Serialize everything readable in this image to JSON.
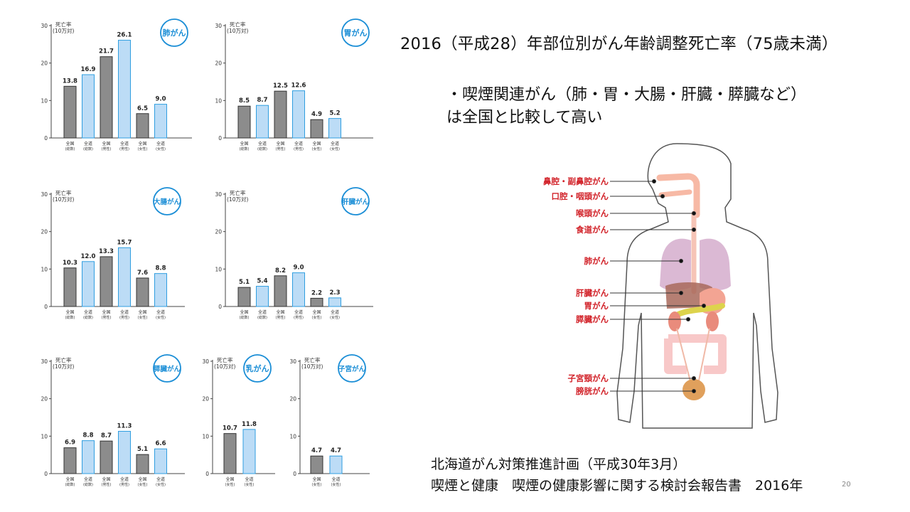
{
  "title": "2016（平成28）年部位別がん年齢調整死亡率（75歳未満）",
  "bullet": {
    "line1": "・喫煙関連がん（肺・胃・大腸・肝臓・膵臓など）",
    "line2": "は全国と比較して高い"
  },
  "source": {
    "line1": "北海道がん対策推進計画（平成30年3月）",
    "line2": "喫煙と健康　喫煙の健康影響に関する検討会報告書　2016年"
  },
  "page_number": "20",
  "colors": {
    "national_bar": "#8c8c8c",
    "hokkaido_bar": "#bcdcf6",
    "hokkaido_border": "#2f9ee0",
    "badge": "#1b8ed6",
    "organ_label": "#d2232a"
  },
  "organ_labels": [
    "鼻腔・副鼻腔がん",
    "口腔・咽頭がん",
    "喉頭がん",
    "食道がん",
    "肺がん",
    "肝臓がん",
    "胃がん",
    "膵臓がん",
    "子宮頸がん",
    "膀胱がん"
  ],
  "chart_data": [
    {
      "type": "bar",
      "badge": "肺がん",
      "ylabel": "死亡率\n(10万対)",
      "ylim": [
        0,
        30
      ],
      "yticks": [
        0,
        10,
        20,
        30
      ],
      "categories": [
        [
          "全国",
          "(総数)"
        ],
        [
          "全道",
          "(総数)"
        ],
        [
          "全国",
          "(男性)"
        ],
        [
          "全道",
          "(男性)"
        ],
        [
          "全国",
          "(女性)"
        ],
        [
          "全道",
          "(女性)"
        ]
      ],
      "values": [
        13.8,
        16.9,
        21.7,
        26.1,
        6.5,
        9.0
      ],
      "labels": [
        "13.8",
        "16.9",
        "21.7",
        "26.1",
        "6.5",
        "9.0"
      ]
    },
    {
      "type": "bar",
      "badge": "胃がん",
      "ylabel": "死亡率\n(10万対)",
      "ylim": [
        0,
        30
      ],
      "yticks": [
        0,
        10,
        20,
        30
      ],
      "categories": [
        [
          "全国",
          "(総数)"
        ],
        [
          "全道",
          "(総数)"
        ],
        [
          "全国",
          "(男性)"
        ],
        [
          "全道",
          "(男性)"
        ],
        [
          "全国",
          "(女性)"
        ],
        [
          "全道",
          "(女性)"
        ]
      ],
      "values": [
        8.5,
        8.7,
        12.5,
        12.6,
        4.9,
        5.2
      ],
      "labels": [
        "8.5",
        "8.7",
        "12.5",
        "12.6",
        "4.9",
        "5.2"
      ]
    },
    {
      "type": "bar",
      "badge": "大腸がん",
      "ylabel": "死亡率\n(10万対)",
      "ylim": [
        0,
        30
      ],
      "yticks": [
        0,
        10,
        20,
        30
      ],
      "categories": [
        [
          "全国",
          "(総数)"
        ],
        [
          "全道",
          "(総数)"
        ],
        [
          "全国",
          "(男性)"
        ],
        [
          "全道",
          "(男性)"
        ],
        [
          "全国",
          "(女性)"
        ],
        [
          "全道",
          "(女性)"
        ]
      ],
      "values": [
        10.3,
        12.0,
        13.3,
        15.7,
        7.6,
        8.8
      ],
      "labels": [
        "10.3",
        "12.0",
        "13.3",
        "15.7",
        "7.6",
        "8.8"
      ]
    },
    {
      "type": "bar",
      "badge": "肝臓がん",
      "ylabel": "死亡率\n(10万対)",
      "ylim": [
        0,
        30
      ],
      "yticks": [
        0,
        10,
        20,
        30
      ],
      "categories": [
        [
          "全国",
          "(総数)"
        ],
        [
          "全道",
          "(総数)"
        ],
        [
          "全国",
          "(男性)"
        ],
        [
          "全道",
          "(男性)"
        ],
        [
          "全国",
          "(女性)"
        ],
        [
          "全道",
          "(女性)"
        ]
      ],
      "values": [
        5.1,
        5.4,
        8.2,
        9.0,
        2.2,
        2.3
      ],
      "labels": [
        "5.1",
        "5.4",
        "8.2",
        "9.0",
        "2.2",
        "2.3"
      ]
    },
    {
      "type": "bar",
      "badge": "膵臓がん",
      "ylabel": "死亡率\n(10万対)",
      "ylim": [
        0,
        30
      ],
      "yticks": [
        0,
        10,
        20,
        30
      ],
      "categories": [
        [
          "全国",
          "(総数)"
        ],
        [
          "全道",
          "(総数)"
        ],
        [
          "全国",
          "(男性)"
        ],
        [
          "全道",
          "(男性)"
        ],
        [
          "全国",
          "(女性)"
        ],
        [
          "全道",
          "(女性)"
        ]
      ],
      "values": [
        6.9,
        8.8,
        8.7,
        11.3,
        5.1,
        6.6
      ],
      "labels": [
        "6.9",
        "8.8",
        "8.7",
        "11.3",
        "5.1",
        "6.6"
      ]
    },
    {
      "type": "bar",
      "badge": "乳がん",
      "ylabel": "死亡率\n(10万対)",
      "ylim": [
        0,
        30
      ],
      "yticks": [
        0,
        10,
        20,
        30
      ],
      "categories": [
        [
          "全国",
          "(女性)"
        ],
        [
          "全道",
          "(女性)"
        ]
      ],
      "values": [
        10.7,
        11.8
      ],
      "labels": [
        "10.7",
        "11.8"
      ]
    },
    {
      "type": "bar",
      "badge": "子宮がん",
      "ylabel": "死亡率\n(10万対)",
      "ylim": [
        0,
        30
      ],
      "yticks": [
        0,
        10,
        20,
        30
      ],
      "categories": [
        [
          "全国",
          "(女性)"
        ],
        [
          "全道",
          "(女性)"
        ]
      ],
      "values": [
        4.7,
        4.7
      ],
      "labels": [
        "4.7",
        "4.7"
      ]
    }
  ]
}
